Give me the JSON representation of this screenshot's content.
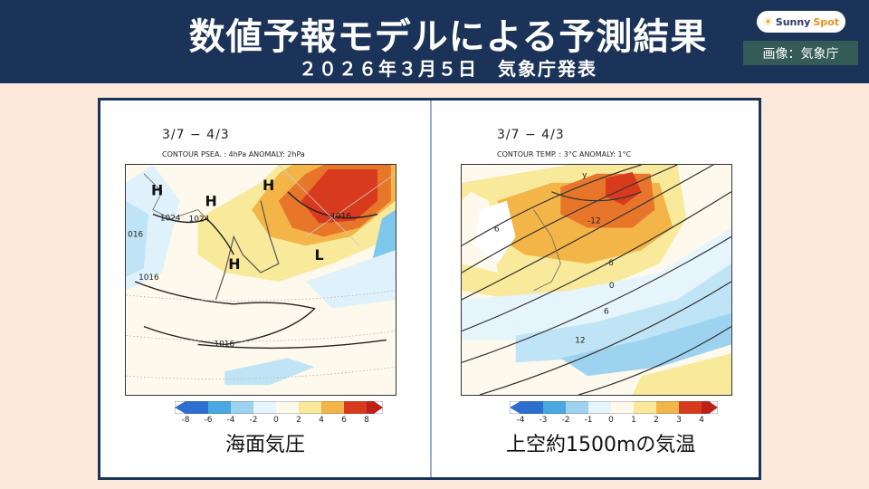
{
  "header": {
    "title": "数値予報モデルによる予測結果",
    "subtitle": "２０２６年３月５日　気象庁発表",
    "logo_text_a": "Sunny",
    "logo_text_b": "Spot",
    "credit": "画像：気象庁"
  },
  "left_panel": {
    "period": "3/7 − 4/3",
    "contour_text": "CONTOUR PSEA. :  4hPa      ANOMALY:  2hPa",
    "labels": [
      "H",
      "H",
      "H",
      "H",
      "L",
      "1024",
      "1024",
      "1016",
      "1016",
      "1016",
      "016"
    ],
    "colorbar_ticks": [
      "-8",
      "-6",
      "-4",
      "-2",
      "0",
      "2",
      "4",
      "6",
      "8"
    ],
    "caption": "海面気圧"
  },
  "right_panel": {
    "period": "3/7 − 4/3",
    "contour_text": "CONTOUR TEMP. :  3°C      ANOMALY:  1°C",
    "labels": [
      "-12",
      "-6",
      "0",
      "6",
      "12",
      "6",
      "y"
    ],
    "colorbar_ticks": [
      "-4",
      "-3",
      "-2",
      "-1",
      "0",
      "1",
      "2",
      "3",
      "4"
    ],
    "caption": "上空約1500mの気温"
  },
  "colors": {
    "header_bg": "#1b3358",
    "page_bg": "#fce9dc",
    "anomaly_negative": "#9ed3f0",
    "anomaly_positive": "#f3b548",
    "anomaly_strong": "#d83a1e"
  }
}
